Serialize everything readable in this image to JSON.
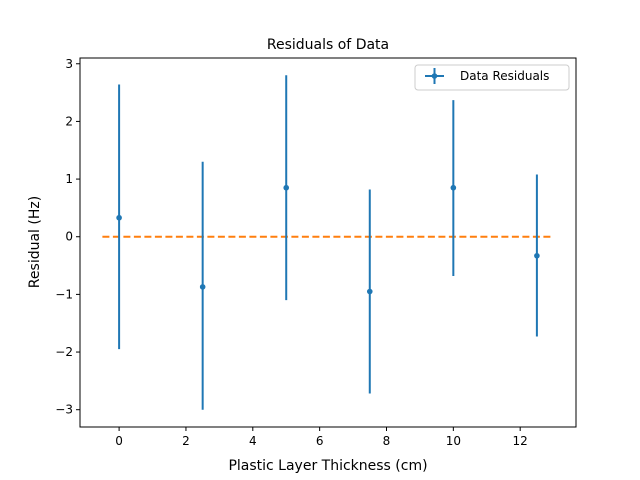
{
  "chart_data": {
    "type": "scatter",
    "title": "Residuals of Data",
    "xlabel": "Plastic Layer Thickness (cm)",
    "ylabel": "Residual (Hz)",
    "xlim": [
      -1.17,
      13.67
    ],
    "ylim": [
      -3.3,
      3.1
    ],
    "xticks": [
      0,
      2,
      4,
      6,
      8,
      10,
      12
    ],
    "xtick_labels": [
      "0",
      "2",
      "4",
      "6",
      "8",
      "10",
      "12"
    ],
    "yticks": [
      -3,
      -2,
      -1,
      0,
      1,
      2,
      3
    ],
    "ytick_labels": [
      "−3",
      "−2",
      "−1",
      "0",
      "1",
      "2",
      "3"
    ],
    "grid": false,
    "legend_position": "top-right",
    "series": [
      {
        "name": "Data Residuals",
        "color": "#1f77b4",
        "x": [
          0,
          2.5,
          5,
          7.5,
          10,
          12.5
        ],
        "y": [
          0.33,
          -0.87,
          0.85,
          -0.95,
          0.85,
          -0.33
        ],
        "yerr_low": [
          -1.95,
          -3.0,
          -1.1,
          -2.72,
          -0.68,
          -1.73
        ],
        "yerr_high": [
          2.64,
          1.3,
          2.8,
          0.82,
          2.37,
          1.08
        ]
      }
    ],
    "reference_line": {
      "y": 0,
      "x_range": [
        -0.5,
        13
      ],
      "style": "dashed",
      "color": "#ff7f0e"
    }
  }
}
